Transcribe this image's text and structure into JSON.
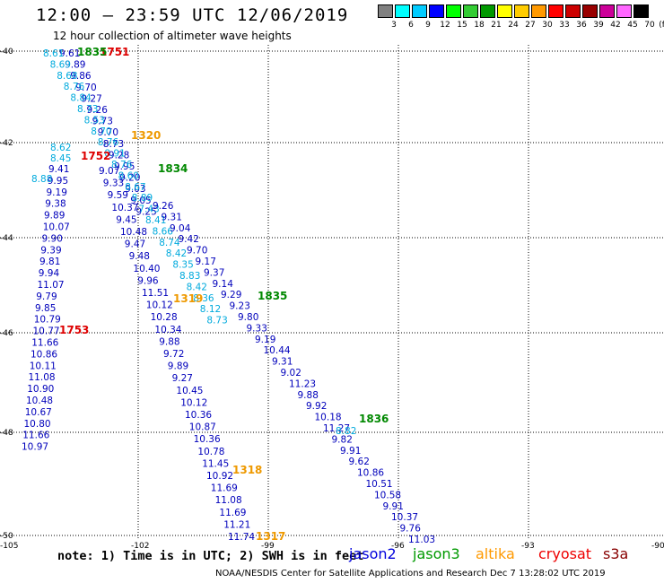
{
  "header": {
    "title": "12:00 — 23:59 UTC 12/06/2019",
    "subtitle": "12 hour collection of altimeter wave heights"
  },
  "color_scale": {
    "unit": "(ft)",
    "swatches": [
      "#808080",
      "#00ffff",
      "#00ccff",
      "#0000ff",
      "#00ff00",
      "#33cc33",
      "#009900",
      "#ffff00",
      "#ffcc00",
      "#ff9900",
      "#ff0000",
      "#cc0000",
      "#990000",
      "#cc0099",
      "#ff66ff",
      "#000000"
    ],
    "labels": [
      "3",
      "6",
      "9",
      "12",
      "15",
      "18",
      "21",
      "24",
      "27",
      "30",
      "33",
      "36",
      "39",
      "42",
      "45",
      "70"
    ]
  },
  "axes": {
    "lat_labels": [
      "-40",
      "-42",
      "-44",
      "-46",
      "-48",
      "-50"
    ],
    "lon_labels": [
      "-105",
      "-102",
      "-99",
      "-96",
      "-93",
      "-90"
    ]
  },
  "tracks": [
    {
      "id": "s1",
      "color": "#0000bb",
      "labels": [
        "9.61",
        "9.89",
        "9.86",
        "9.70",
        "9.27",
        "9.26",
        "9.73",
        "9.70",
        "8.73",
        "9.28",
        "9.95",
        "9.20",
        "9.03",
        "9.05",
        "9.25"
      ]
    },
    {
      "id": "s2",
      "color": "#00aadd",
      "labels": [
        "8.61",
        "8.69",
        "8.68",
        "8.76",
        "8.84",
        "8.73",
        "8.53",
        "8.70",
        "8.76",
        "8.91",
        "8.76",
        "8.60",
        "8.67",
        "8.89",
        "7.43",
        "8.41",
        "8.66",
        "8.74",
        "8.42",
        "8.35",
        "8.83",
        "8.42",
        "8.36",
        "8.12",
        "8.73"
      ]
    },
    {
      "id": "s3",
      "color": "#0000bb",
      "labels": [
        "9.07",
        "9.33",
        "9.59",
        "10.37",
        "9.45",
        "10.48",
        "9.47",
        "9.48",
        "10.40",
        "9.96",
        "11.51",
        "10.12",
        "10.28",
        "10.34",
        "9.88",
        "9.72",
        "9.89",
        "9.27",
        "10.45",
        "10.12",
        "10.36",
        "10.87",
        "10.36",
        "10.78",
        "11.45",
        "10.92",
        "11.69",
        "11.08",
        "11.69",
        "11.21",
        "11.74"
      ]
    },
    {
      "id": "s4",
      "color": "#0000bb",
      "labels": [
        "9.26",
        "9.31",
        "9.04",
        "9.42",
        "9.70",
        "9.17",
        "9.37",
        "9.14",
        "9.29",
        "9.23",
        "9.80",
        "9.33",
        "9.19",
        "10.44",
        "9.31",
        "9.02",
        "11.23",
        "9.88",
        "9.92",
        "10.18",
        "11.27",
        "9.82",
        "9.91",
        "9.62",
        "10.86",
        "10.51",
        "10.58",
        "9.91",
        "10.37",
        "9.76",
        "11.03"
      ]
    },
    {
      "id": "s5",
      "color": "#0000bb",
      "labels": [
        "9.41",
        "9.95",
        "9.19",
        "9.38",
        "9.89",
        "10.07",
        "9.90",
        "9.39",
        "9.81",
        "9.94",
        "11.07",
        "9.79",
        "9.85",
        "10.79",
        "10.77",
        "11.66",
        "10.86",
        "10.11",
        "11.08",
        "10.90",
        "10.48",
        "10.67",
        "10.80",
        "11.66",
        "10.97"
      ]
    },
    {
      "id": "s6",
      "color": "#00aadd",
      "labels": [
        "8.62",
        "8.45",
        "8.88",
        "8.82"
      ]
    }
  ],
  "time_labels": [
    {
      "text": "1751",
      "color": "#dd0000"
    },
    {
      "text": "1835",
      "color": "#008800"
    },
    {
      "text": "1320",
      "color": "#ee9900"
    },
    {
      "text": "1752",
      "color": "#dd0000"
    },
    {
      "text": "1834",
      "color": "#008800"
    },
    {
      "text": "1319",
      "color": "#ee9900"
    },
    {
      "text": "1835",
      "color": "#008800"
    },
    {
      "text": "1753",
      "color": "#dd0000"
    },
    {
      "text": "1836",
      "color": "#008800"
    },
    {
      "text": "1318",
      "color": "#ee9900"
    },
    {
      "text": "1317",
      "color": "#ee9900"
    }
  ],
  "note": "note: 1) Time is in UTC; 2) SWH is in feet",
  "legend": [
    {
      "name": "jason2",
      "color": "#0000dd"
    },
    {
      "name": "jason3",
      "color": "#009900"
    },
    {
      "name": "altika",
      "color": "#ff9900"
    },
    {
      "name": "cryosat",
      "color": "#ee0000"
    },
    {
      "name": "s3a",
      "color": "#880000"
    }
  ],
  "footer": "NOAA/NESDIS Center for Satellite Applications and Research   Dec  7 13:28:02 UTC 2019"
}
